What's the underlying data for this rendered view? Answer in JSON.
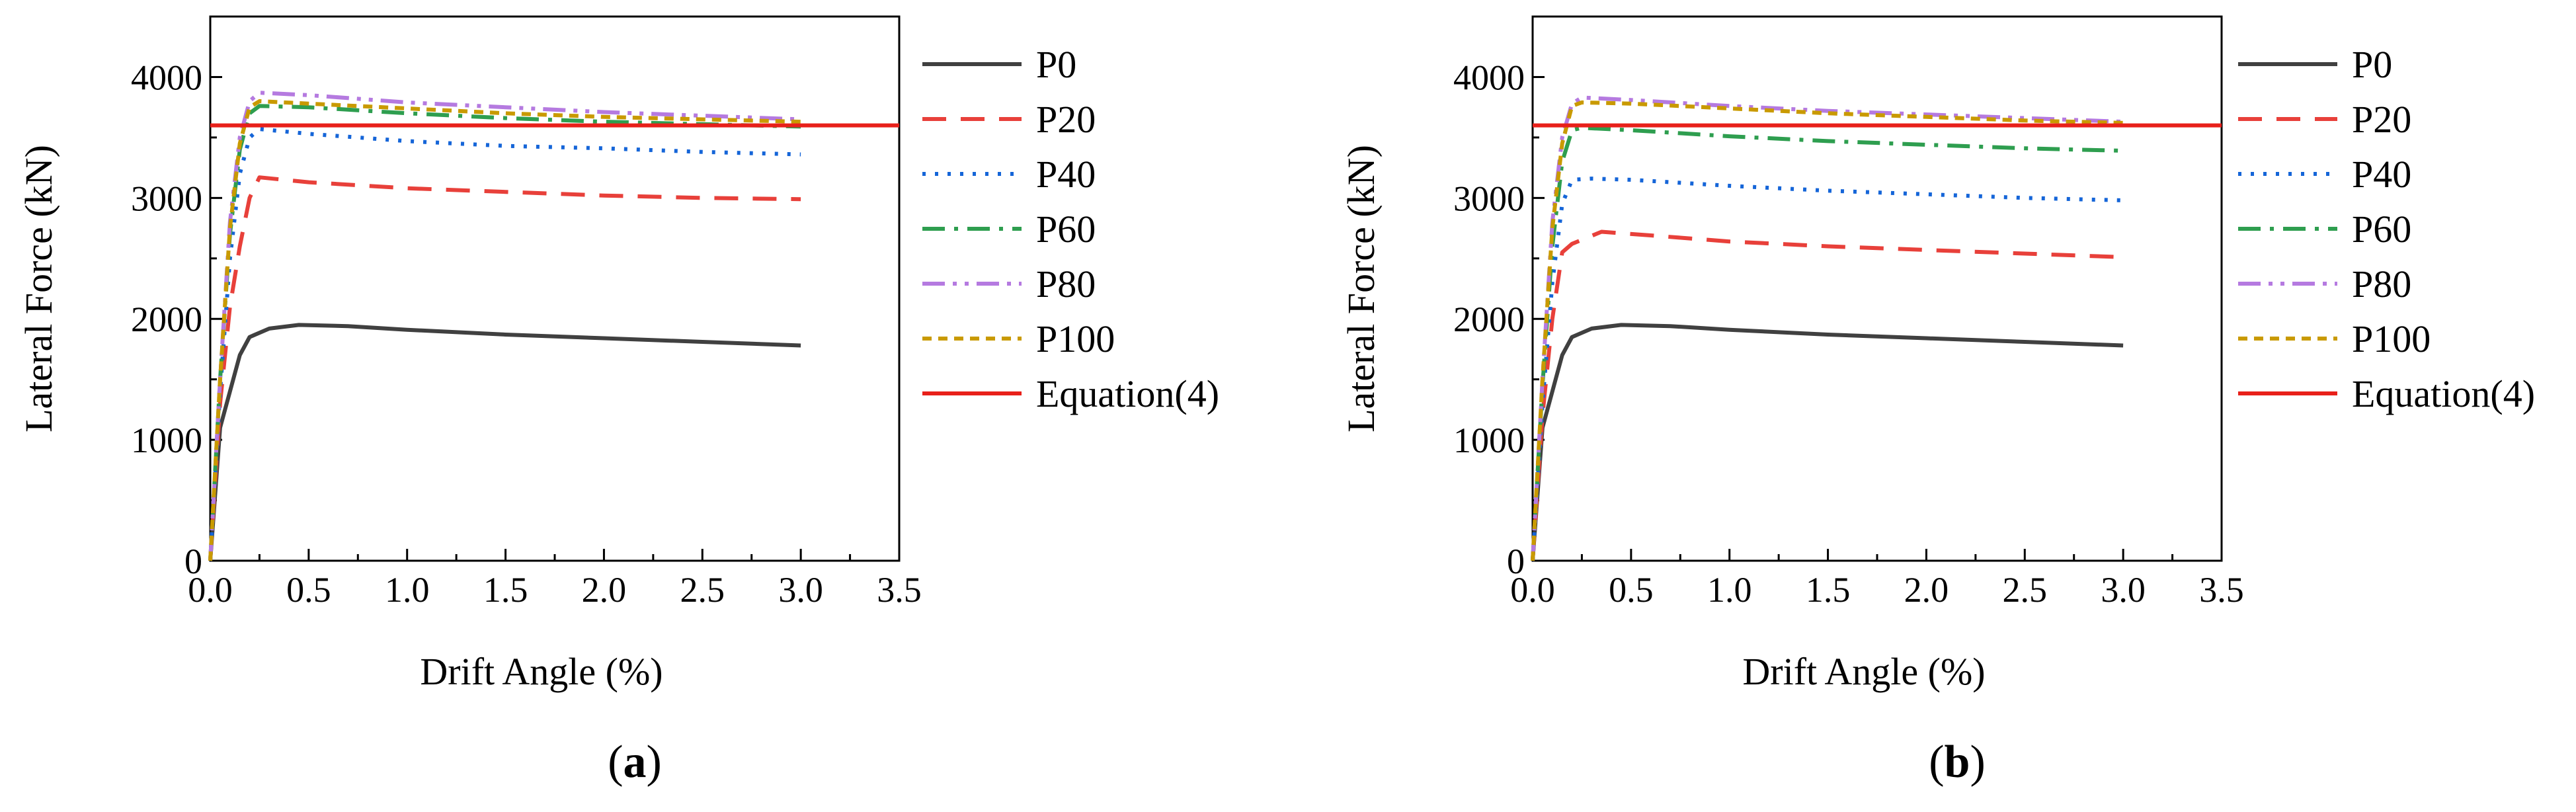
{
  "chart_data": [
    {
      "type": "line",
      "panel_label": "a",
      "xlabel": "Drift Angle (%)",
      "ylabel": "Lateral Force (kN)",
      "xlim": [
        0,
        3.5
      ],
      "ylim": [
        0,
        4500
      ],
      "xticks": [
        "0.0",
        "0.5",
        "1.0",
        "1.5",
        "2.0",
        "2.5",
        "3.0",
        "3.5"
      ],
      "yticks": [
        "0",
        "1000",
        "2000",
        "3000",
        "4000"
      ],
      "legend_position": "right",
      "series": [
        {
          "name": "P0",
          "color": "#404040",
          "dash": "solid",
          "points": [
            [
              0,
              0
            ],
            [
              0.05,
              1100
            ],
            [
              0.1,
              1400
            ],
            [
              0.15,
              1700
            ],
            [
              0.2,
              1850
            ],
            [
              0.3,
              1920
            ],
            [
              0.45,
              1950
            ],
            [
              0.7,
              1940
            ],
            [
              1.0,
              1910
            ],
            [
              1.5,
              1870
            ],
            [
              2.0,
              1840
            ],
            [
              2.5,
              1810
            ],
            [
              3.0,
              1780
            ]
          ]
        },
        {
          "name": "P20",
          "color": "#e8403a",
          "dash": "dashed",
          "points": [
            [
              0,
              0
            ],
            [
              0.05,
              1300
            ],
            [
              0.1,
              2100
            ],
            [
              0.15,
              2600
            ],
            [
              0.2,
              3000
            ],
            [
              0.25,
              3170
            ],
            [
              0.5,
              3130
            ],
            [
              1.0,
              3080
            ],
            [
              1.5,
              3050
            ],
            [
              2.0,
              3020
            ],
            [
              2.5,
              3000
            ],
            [
              3.0,
              2990
            ]
          ]
        },
        {
          "name": "P40",
          "color": "#1565d8",
          "dash": "dotted",
          "points": [
            [
              0,
              0
            ],
            [
              0.05,
              1400
            ],
            [
              0.1,
              2500
            ],
            [
              0.15,
              3200
            ],
            [
              0.2,
              3500
            ],
            [
              0.25,
              3570
            ],
            [
              0.5,
              3530
            ],
            [
              1.0,
              3470
            ],
            [
              1.5,
              3430
            ],
            [
              2.0,
              3410
            ],
            [
              2.5,
              3380
            ],
            [
              3.0,
              3360
            ]
          ]
        },
        {
          "name": "P60",
          "color": "#2e9e4f",
          "dash": "dashdot",
          "points": [
            [
              0,
              0
            ],
            [
              0.05,
              1500
            ],
            [
              0.1,
              2700
            ],
            [
              0.15,
              3400
            ],
            [
              0.2,
              3700
            ],
            [
              0.25,
              3760
            ],
            [
              0.5,
              3750
            ],
            [
              1.0,
              3700
            ],
            [
              1.5,
              3660
            ],
            [
              2.0,
              3630
            ],
            [
              2.5,
              3610
            ],
            [
              3.0,
              3590
            ]
          ]
        },
        {
          "name": "P80",
          "color": "#b57ae0",
          "dash": "dashdotdot",
          "points": [
            [
              0,
              0
            ],
            [
              0.05,
              1500
            ],
            [
              0.1,
              2800
            ],
            [
              0.15,
              3500
            ],
            [
              0.2,
              3800
            ],
            [
              0.25,
              3870
            ],
            [
              0.5,
              3850
            ],
            [
              1.0,
              3790
            ],
            [
              1.5,
              3750
            ],
            [
              2.0,
              3710
            ],
            [
              2.5,
              3680
            ],
            [
              3.0,
              3650
            ]
          ]
        },
        {
          "name": "P100",
          "color": "#c99a00",
          "dash": "shortdash",
          "points": [
            [
              0,
              0
            ],
            [
              0.05,
              1500
            ],
            [
              0.1,
              2750
            ],
            [
              0.15,
              3450
            ],
            [
              0.2,
              3750
            ],
            [
              0.25,
              3800
            ],
            [
              0.5,
              3780
            ],
            [
              1.0,
              3740
            ],
            [
              1.5,
              3700
            ],
            [
              2.0,
              3670
            ],
            [
              2.5,
              3650
            ],
            [
              3.0,
              3630
            ]
          ]
        },
        {
          "name": "Equation(4)",
          "color": "#e8201a",
          "dash": "solid",
          "horizontal": 3600
        }
      ]
    },
    {
      "type": "line",
      "panel_label": "b",
      "xlabel": "Drift Angle (%)",
      "ylabel": "Lateral Force (kN)",
      "xlim": [
        0,
        3.5
      ],
      "ylim": [
        0,
        4500
      ],
      "xticks": [
        "0.0",
        "0.5",
        "1.0",
        "1.5",
        "2.0",
        "2.5",
        "3.0",
        "3.5"
      ],
      "yticks": [
        "0",
        "1000",
        "2000",
        "3000",
        "4000"
      ],
      "legend_position": "right",
      "series": [
        {
          "name": "P0",
          "color": "#404040",
          "dash": "solid",
          "points": [
            [
              0,
              0
            ],
            [
              0.05,
              1100
            ],
            [
              0.1,
              1400
            ],
            [
              0.15,
              1700
            ],
            [
              0.2,
              1850
            ],
            [
              0.3,
              1920
            ],
            [
              0.45,
              1950
            ],
            [
              0.7,
              1940
            ],
            [
              1.0,
              1910
            ],
            [
              1.5,
              1870
            ],
            [
              2.0,
              1840
            ],
            [
              2.5,
              1810
            ],
            [
              3.0,
              1780
            ]
          ]
        },
        {
          "name": "P20",
          "color": "#e8403a",
          "dash": "dashed",
          "points": [
            [
              0,
              0
            ],
            [
              0.05,
              1200
            ],
            [
              0.1,
              2000
            ],
            [
              0.15,
              2550
            ],
            [
              0.2,
              2620
            ],
            [
              0.35,
              2720
            ],
            [
              0.6,
              2690
            ],
            [
              1.0,
              2640
            ],
            [
              1.5,
              2600
            ],
            [
              2.0,
              2570
            ],
            [
              2.5,
              2540
            ],
            [
              3.0,
              2510
            ]
          ]
        },
        {
          "name": "P40",
          "color": "#1565d8",
          "dash": "dotted",
          "points": [
            [
              0,
              0
            ],
            [
              0.05,
              1300
            ],
            [
              0.1,
              2300
            ],
            [
              0.15,
              2950
            ],
            [
              0.2,
              3150
            ],
            [
              0.3,
              3160
            ],
            [
              0.5,
              3150
            ],
            [
              1.0,
              3100
            ],
            [
              1.5,
              3060
            ],
            [
              2.0,
              3030
            ],
            [
              2.5,
              3000
            ],
            [
              3.0,
              2980
            ]
          ]
        },
        {
          "name": "P60",
          "color": "#2e9e4f",
          "dash": "dashdot",
          "points": [
            [
              0,
              0
            ],
            [
              0.05,
              1450
            ],
            [
              0.1,
              2600
            ],
            [
              0.15,
              3300
            ],
            [
              0.2,
              3560
            ],
            [
              0.25,
              3580
            ],
            [
              0.5,
              3560
            ],
            [
              1.0,
              3510
            ],
            [
              1.5,
              3470
            ],
            [
              2.0,
              3440
            ],
            [
              2.5,
              3410
            ],
            [
              3.0,
              3390
            ]
          ]
        },
        {
          "name": "P80",
          "color": "#b57ae0",
          "dash": "dashdotdot",
          "points": [
            [
              0,
              0
            ],
            [
              0.05,
              1500
            ],
            [
              0.1,
              2800
            ],
            [
              0.15,
              3500
            ],
            [
              0.2,
              3780
            ],
            [
              0.25,
              3830
            ],
            [
              0.5,
              3810
            ],
            [
              1.0,
              3760
            ],
            [
              1.5,
              3720
            ],
            [
              2.0,
              3690
            ],
            [
              2.5,
              3660
            ],
            [
              3.0,
              3630
            ]
          ]
        },
        {
          "name": "P100",
          "color": "#c99a00",
          "dash": "shortdash",
          "points": [
            [
              0,
              0
            ],
            [
              0.05,
              1500
            ],
            [
              0.1,
              2750
            ],
            [
              0.15,
              3450
            ],
            [
              0.2,
              3760
            ],
            [
              0.25,
              3790
            ],
            [
              0.5,
              3780
            ],
            [
              1.0,
              3740
            ],
            [
              1.5,
              3700
            ],
            [
              2.0,
              3670
            ],
            [
              2.5,
              3640
            ],
            [
              3.0,
              3620
            ]
          ]
        },
        {
          "name": "Equation(4)",
          "color": "#e8201a",
          "dash": "solid",
          "horizontal": 3600
        }
      ]
    }
  ]
}
